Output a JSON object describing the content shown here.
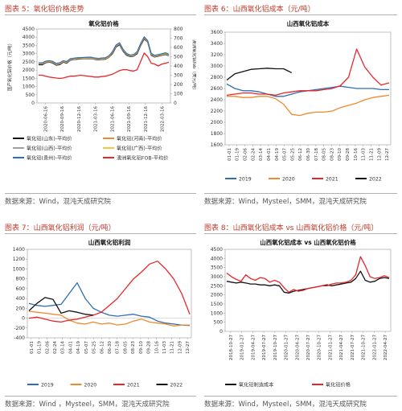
{
  "figures": [
    {
      "caption": "图表 5：氧化铝价格走势",
      "source": "数据来源：Wind，混沌天成研究院"
    },
    {
      "caption": "图表 6：山西氧化铝成本（元/吨）",
      "source": "数据来源：Wind，Mysteel，SMM，混沌天成研究院"
    },
    {
      "caption": "图表 7：山西氧化铝利润（元/吨）",
      "source": "数据来源：Wind ，Mysteel，SMM，混沌天成研究院"
    },
    {
      "caption": "图表 8：山西氧化铝成本 vs 山西氧化铝价格（元/吨）",
      "source": "数据来源：Wind，Mysteel，SMM，混沌天成研究院"
    }
  ],
  "colors": {
    "caption": "#c0392b",
    "red": "#e8262a",
    "orange": "#ef8a2c",
    "blue": "#2f6db5",
    "black": "#111111",
    "gray": "#a0a0a0",
    "yellow": "#f2c744",
    "teal": "#3bb3a3"
  },
  "chart_data": [
    {
      "type": "line",
      "title": "氧化铝价格",
      "ylabel": "国产氧化铝价格（元/吨）",
      "y2label": "澳洲氧化铝fob（美元/吨）",
      "ylim": [
        0,
        4500
      ],
      "yticks": [
        0,
        500,
        1000,
        1500,
        2000,
        2500,
        3000,
        3500,
        4000,
        4500
      ],
      "y2lim": [
        0,
        800
      ],
      "y2ticks": [
        0,
        100,
        200,
        300,
        400,
        500,
        600,
        700,
        800
      ],
      "xticks": [
        "2020-06-16",
        "2020-09-16",
        "2020-12-16",
        "2021-03-16",
        "2021-06-16",
        "2021-09-16",
        "2021-12-16",
        "2022-03-16"
      ],
      "legend": "bottom",
      "series": [
        {
          "name": "氧化铝(山东)-平均价",
          "color": "#111111",
          "values": [
            2330,
            2320,
            2450,
            2480,
            2430,
            2300,
            2330,
            2480,
            2420,
            2600,
            2640,
            2660,
            2680,
            2690,
            2700,
            2700,
            2650,
            2620,
            2640,
            2660,
            2780,
            3000,
            3400,
            3550,
            3150,
            2900,
            2820,
            2850,
            3000,
            3500,
            3900,
            3700,
            2900,
            2800,
            2850,
            2900,
            2950,
            2880
          ]
        },
        {
          "name": "氧化铝(河南)-平均价",
          "color": "#ef8a2c",
          "values": [
            2380,
            2370,
            2480,
            2500,
            2470,
            2340,
            2370,
            2510,
            2460,
            2630,
            2660,
            2690,
            2700,
            2710,
            2720,
            2720,
            2670,
            2650,
            2660,
            2690,
            2800,
            3050,
            3450,
            3600,
            3200,
            2950,
            2850,
            2880,
            3050,
            3550,
            3950,
            3720,
            2950,
            2820,
            2880,
            2920,
            2980,
            2900
          ]
        },
        {
          "name": "氧化铝(山西)-平均价",
          "color": "#a0a0a0",
          "values": [
            2400,
            2390,
            2500,
            2530,
            2490,
            2360,
            2400,
            2530,
            2480,
            2650,
            2680,
            2710,
            2720,
            2730,
            2740,
            2740,
            2690,
            2670,
            2690,
            2710,
            2830,
            3080,
            3480,
            3620,
            3220,
            2970,
            2870,
            2900,
            3070,
            3580,
            3980,
            3740,
            2970,
            2850,
            2900,
            2950,
            3010,
            2920
          ]
        },
        {
          "name": "氧化铝(广西)-平均价",
          "color": "#f2c744",
          "values": [
            2420,
            2410,
            2520,
            2550,
            2510,
            2380,
            2420,
            2550,
            2500,
            2670,
            2700,
            2730,
            2740,
            2750,
            2760,
            2760,
            2710,
            2690,
            2710,
            2730,
            2850,
            3100,
            3500,
            3640,
            3240,
            2990,
            2890,
            2920,
            3090,
            3600,
            4000,
            3760,
            2990,
            2870,
            2920,
            2970,
            3030,
            2940
          ]
        },
        {
          "name": "氧化铝(贵州)-平均价",
          "color": "#2f6db5",
          "values": [
            2440,
            2430,
            2540,
            2570,
            2530,
            2400,
            2440,
            2570,
            2520,
            2690,
            2720,
            2750,
            2760,
            2770,
            2780,
            2780,
            2730,
            2710,
            2730,
            2750,
            2870,
            3120,
            3520,
            3660,
            3260,
            3010,
            2910,
            2940,
            3110,
            3620,
            4020,
            3780,
            3010,
            2890,
            2940,
            2990,
            3050,
            2960
          ]
        },
        {
          "name": "澳洲氧化铝FOB-平均价",
          "color": "#e8262a",
          "axis": "right",
          "values": [
            300,
            300,
            290,
            280,
            275,
            270,
            265,
            270,
            280,
            290,
            290,
            295,
            300,
            295,
            290,
            285,
            280,
            280,
            285,
            290,
            300,
            310,
            330,
            350,
            360,
            360,
            350,
            345,
            360,
            450,
            540,
            500,
            430,
            420,
            400,
            420,
            430,
            440
          ]
        }
      ]
    },
    {
      "type": "line",
      "title": "山西氧化铝成本",
      "ylim": [
        1600,
        3600
      ],
      "yticks": [
        1600,
        1800,
        2000,
        2200,
        2400,
        2600,
        2800,
        3000,
        3200,
        3400,
        3600
      ],
      "xticks": [
        "01-01",
        "01-19",
        "02-06",
        "02-24",
        "03-14",
        "04-01",
        "04-19",
        "05-07",
        "05-25",
        "06-12",
        "06-30",
        "07-18",
        "08-05",
        "08-23",
        "09-10",
        "09-28",
        "10-16",
        "11-03",
        "11-21",
        "12-09",
        "12-27"
      ],
      "legend": "bottom",
      "series": [
        {
          "name": "2019",
          "color": "#2f6db5",
          "values": [
            2680,
            2600,
            2560,
            2560,
            2540,
            2500,
            2460,
            2460,
            2500,
            2540,
            2560,
            2580,
            2600,
            2620,
            2640,
            2620,
            2600,
            2600,
            2600,
            2580,
            2580
          ]
        },
        {
          "name": "2020",
          "color": "#ef8a2c",
          "values": [
            2460,
            2460,
            2440,
            2440,
            2460,
            2460,
            2420,
            2320,
            2140,
            2120,
            2160,
            2180,
            2180,
            2200,
            2260,
            2300,
            2340,
            2400,
            2440,
            2460,
            2480
          ]
        },
        {
          "name": "2021",
          "color": "#e8262a",
          "values": [
            2480,
            2500,
            2520,
            2520,
            2500,
            2500,
            2480,
            2520,
            2540,
            2560,
            2560,
            2560,
            2580,
            2600,
            2650,
            2800,
            3300,
            2980,
            2800,
            2660,
            2700
          ]
        },
        {
          "name": "2022",
          "color": "#111111",
          "values": [
            2750,
            2860,
            2900,
            2940,
            2950,
            2960,
            2950,
            2950,
            2880
          ]
        }
      ]
    },
    {
      "type": "line",
      "title": "山西氧化铝利润",
      "ylim": [
        -400,
        1400
      ],
      "yticks": [
        -400,
        -200,
        0,
        200,
        400,
        600,
        800,
        1000,
        1200,
        1400
      ],
      "xticks": [
        "01-01",
        "01-19",
        "02-06",
        "02-24",
        "03-14",
        "04-01",
        "04-19",
        "05-07",
        "05-25",
        "06-12",
        "06-30",
        "07-18",
        "08-05",
        "08-23",
        "09-10",
        "09-28",
        "10-16",
        "11-03",
        "11-21",
        "12-09",
        "12-27"
      ],
      "legend": "bottom",
      "series": [
        {
          "name": "2019",
          "color": "#2f6db5",
          "values": [
            300,
            260,
            240,
            260,
            280,
            500,
            720,
            400,
            200,
            120,
            60,
            40,
            60,
            80,
            40,
            20,
            -60,
            -100,
            -120,
            -140,
            -150
          ]
        },
        {
          "name": "2020",
          "color": "#ef8a2c",
          "values": [
            140,
            120,
            100,
            80,
            60,
            -40,
            -100,
            -120,
            -80,
            -120,
            -100,
            -140,
            -120,
            -60,
            -20,
            -80,
            -100,
            -120,
            -160,
            -140,
            -140
          ]
        },
        {
          "name": "2021",
          "color": "#e8262a",
          "values": [
            0,
            20,
            -20,
            -60,
            -80,
            -40,
            -20,
            20,
            60,
            120,
            260,
            400,
            600,
            800,
            940,
            1100,
            1160,
            1000,
            800,
            500,
            80
          ]
        },
        {
          "name": "2022",
          "color": "#111111",
          "values": [
            150,
            300,
            420,
            380,
            100,
            150,
            120,
            80,
            60
          ]
        }
      ]
    },
    {
      "type": "line",
      "title": "山西氧化铝成本 vs 山西氧化铝价格",
      "ylim": [
        0,
        4500
      ],
      "yticks": [
        0,
        500,
        1000,
        1500,
        2000,
        2500,
        3000,
        3500,
        4000,
        4500
      ],
      "xticks": [
        "2018-10-27",
        "2019-01-27",
        "2019-04-27",
        "2019-07-27",
        "2019-10-27",
        "2020-01-27",
        "2020-04-27",
        "2020-07-27",
        "2020-10-27",
        "2021-01-27",
        "2021-04-27",
        "2021-07-27",
        "2021-10-27",
        "2022-01-27",
        "2022-04-27"
      ],
      "legend": "bottom",
      "series": [
        {
          "name": "氧化铝制造成本",
          "color": "#111111",
          "values": [
            2750,
            2700,
            2650,
            2700,
            2650,
            2600,
            2600,
            2550,
            2550,
            2500,
            2550,
            2500,
            2150,
            2100,
            2200,
            2250,
            2300,
            2350,
            2400,
            2450,
            2500,
            2550,
            2500,
            2550,
            2600,
            2650,
            2700,
            2900,
            3300,
            2800,
            2700,
            2750,
            2900,
            2950,
            2900
          ]
        },
        {
          "name": "氧化铝价格",
          "color": "#e8262a",
          "values": [
            3200,
            3000,
            2850,
            2750,
            3100,
            2900,
            2800,
            2950,
            2900,
            2700,
            2800,
            2700,
            2400,
            2150,
            2300,
            2200,
            2250,
            2350,
            2400,
            2450,
            2500,
            2500,
            2600,
            2650,
            2650,
            2700,
            2800,
            3100,
            4100,
            3600,
            3000,
            2900,
            2950,
            3050,
            2950
          ]
        }
      ]
    }
  ]
}
